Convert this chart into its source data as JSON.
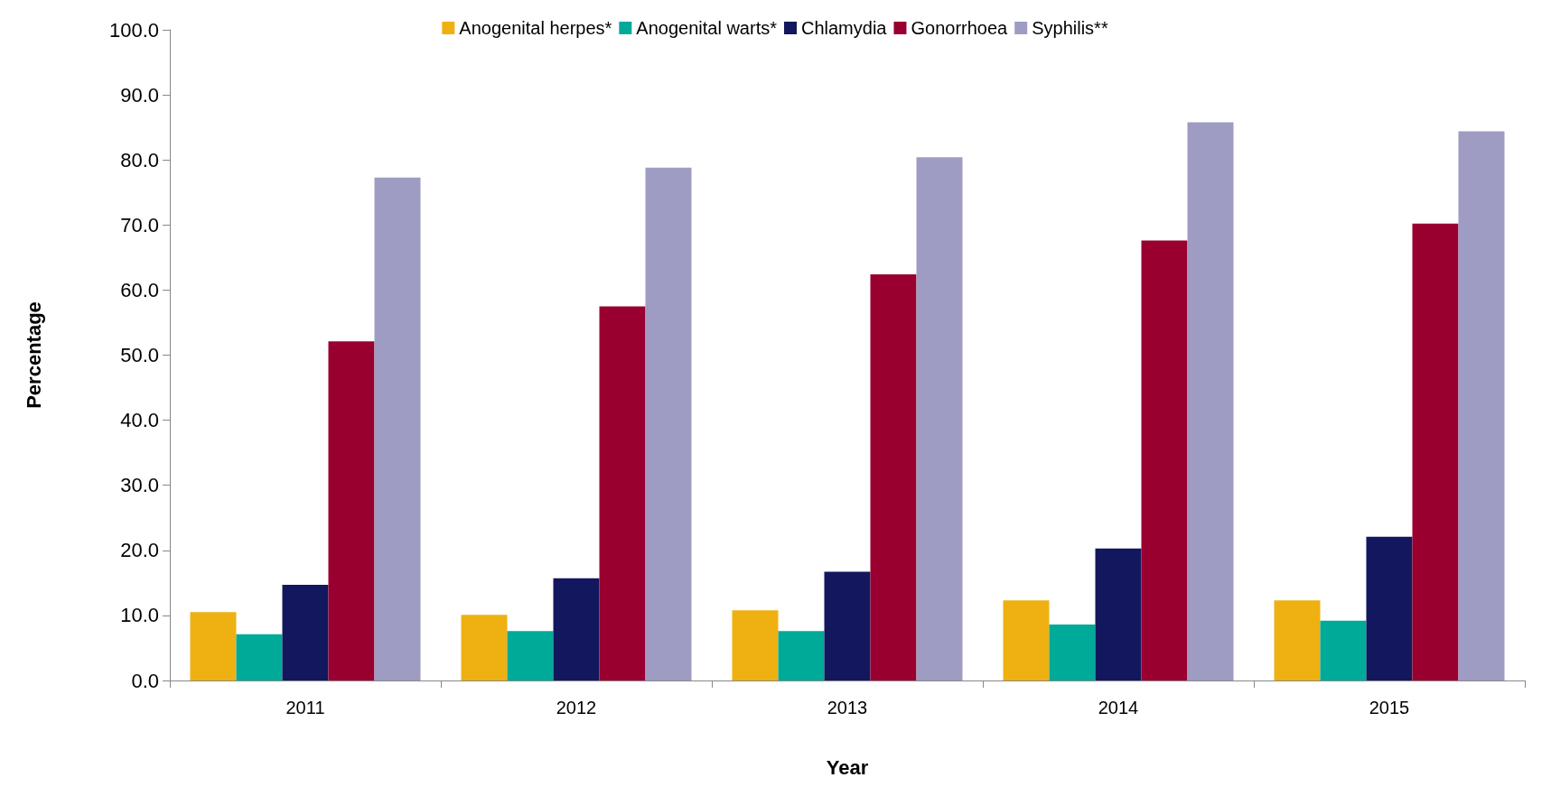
{
  "chart_data": {
    "type": "bar",
    "xlabel": "Year",
    "ylabel": "Percentage",
    "categories": [
      "2011",
      "2012",
      "2013",
      "2014",
      "2015"
    ],
    "series": [
      {
        "name": "Anogenital herpes*",
        "color": "#eeb111",
        "values": [
          10.5,
          10.1,
          10.8,
          12.3,
          12.3
        ]
      },
      {
        "name": "Anogenital warts*",
        "color": "#00aa99",
        "values": [
          7.1,
          7.6,
          7.6,
          8.6,
          9.2
        ]
      },
      {
        "name": "Chlamydia",
        "color": "#13175e",
        "values": [
          14.7,
          15.7,
          16.7,
          20.3,
          22.1
        ]
      },
      {
        "name": "Gonorrhoea",
        "color": "#990030",
        "values": [
          52.1,
          57.5,
          62.4,
          67.6,
          70.2
        ]
      },
      {
        "name": "Syphilis**",
        "color": "#9e9cc2",
        "values": [
          77.3,
          78.8,
          80.4,
          85.8,
          84.4
        ]
      }
    ],
    "ylim": [
      0,
      100
    ],
    "yticks": [
      {
        "value": 0,
        "label": "0.0"
      },
      {
        "value": 10,
        "label": "10.0"
      },
      {
        "value": 20,
        "label": "20.0"
      },
      {
        "value": 30,
        "label": "30.0"
      },
      {
        "value": 40,
        "label": "40.0"
      },
      {
        "value": 50,
        "label": "50.0"
      },
      {
        "value": 60,
        "label": "60.0"
      },
      {
        "value": 70,
        "label": "70.0"
      },
      {
        "value": 80,
        "label": "80.0"
      },
      {
        "value": 90,
        "label": "90.0"
      },
      {
        "value": 100,
        "label": "100.0"
      }
    ],
    "grid": false,
    "legend": "top"
  }
}
